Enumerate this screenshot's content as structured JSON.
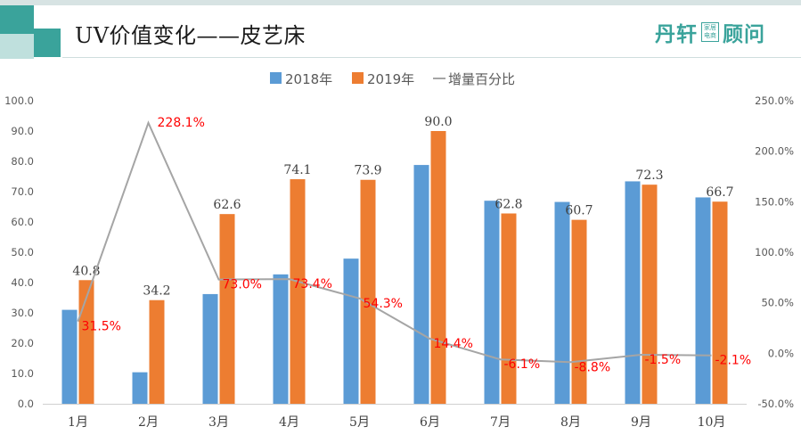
{
  "title": "UV价值变化——皮艺床",
  "brand": {
    "left": "丹轩",
    "box_line1": "家居",
    "box_line2": "电商",
    "right": "顾问"
  },
  "colors": {
    "series_2018": "#5b9bd5",
    "series_2019": "#ed7d31",
    "growth_line": "#a5a5a5",
    "growth_label": "#ff0000",
    "accent": "#3aa39b"
  },
  "chart_data": {
    "type": "bar",
    "categories": [
      "1月",
      "2月",
      "3月",
      "4月",
      "5月",
      "6月",
      "7月",
      "8月",
      "9月",
      "10月"
    ],
    "series": [
      {
        "name": "2018年",
        "type": "bar",
        "values": [
          31.0,
          10.4,
          36.2,
          42.7,
          47.9,
          78.8,
          67.0,
          66.6,
          73.4,
          68.1
        ]
      },
      {
        "name": "2019年",
        "type": "bar",
        "values": [
          40.8,
          34.2,
          62.6,
          74.1,
          73.9,
          90.0,
          62.8,
          60.7,
          72.3,
          66.7
        ],
        "labels": [
          "40.8",
          "34.2",
          "62.6",
          "74.1",
          "73.9",
          "90.0",
          "62.8",
          "60.7",
          "72.3",
          "66.7"
        ]
      },
      {
        "name": "增量百分比",
        "type": "line",
        "axis": "right",
        "values": [
          31.5,
          228.1,
          73.0,
          73.4,
          54.3,
          14.4,
          -6.1,
          -8.8,
          -1.5,
          -2.1
        ],
        "labels": [
          "31.5%",
          "228.1%",
          "73.0%",
          "73.4%",
          "54.3%",
          "14.4%",
          "-6.1%",
          "-8.8%",
          "-1.5%",
          "-2.1%"
        ]
      }
    ],
    "left_axis": {
      "min": 0,
      "max": 100,
      "step": 10,
      "ticks": [
        "0.0",
        "10.0",
        "20.0",
        "30.0",
        "40.0",
        "50.0",
        "60.0",
        "70.0",
        "80.0",
        "90.0",
        "100.0"
      ]
    },
    "right_axis": {
      "min": -50,
      "max": 250,
      "step": 50,
      "ticks": [
        "-50.0%",
        "0.0%",
        "50.0%",
        "100.0%",
        "150.0%",
        "200.0%",
        "250.0%"
      ]
    },
    "grid": false,
    "legend": "top-center"
  }
}
